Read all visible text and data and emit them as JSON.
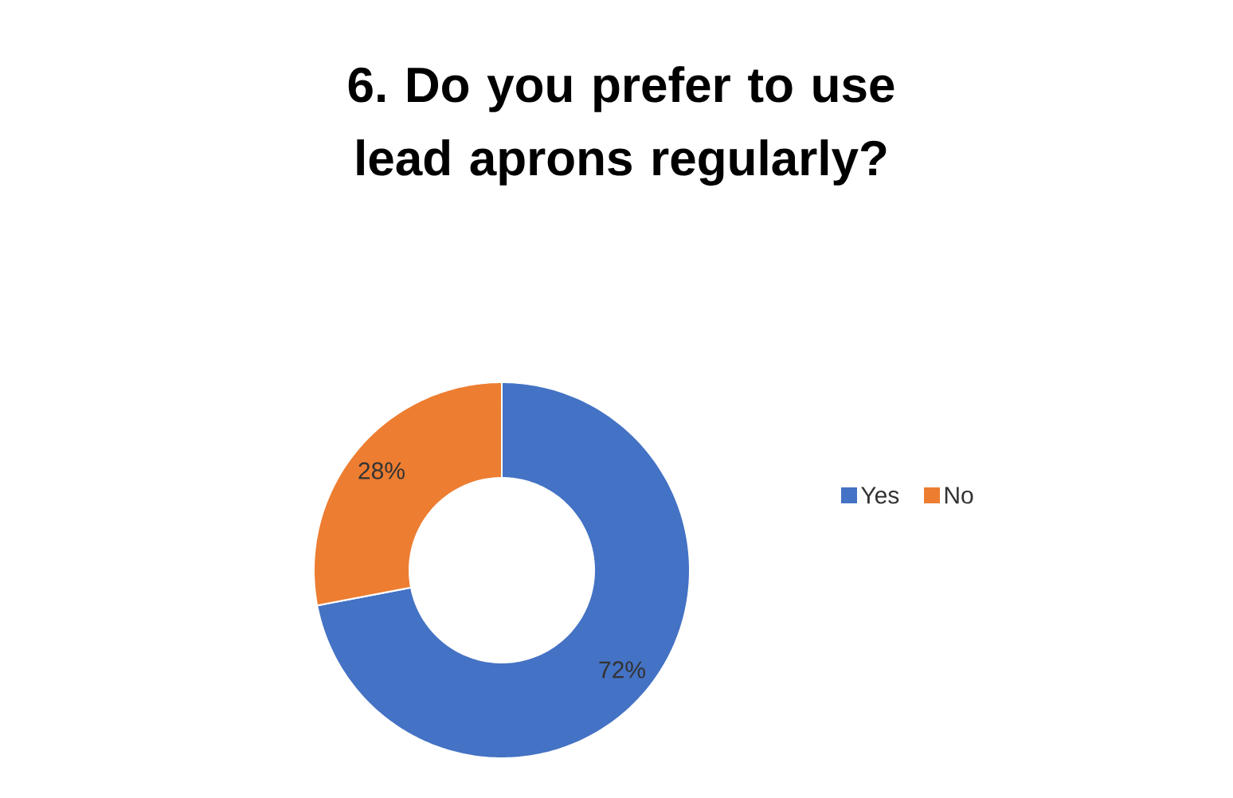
{
  "chart_data": {
    "type": "donut",
    "title": "6. Do you prefer to use lead aprons regularly?",
    "categories": [
      "Yes",
      "No"
    ],
    "values": [
      72,
      28
    ],
    "colors": [
      "#4472c4",
      "#ed7d31"
    ],
    "value_labels": [
      "72%",
      "28%"
    ],
    "legend": "right"
  }
}
